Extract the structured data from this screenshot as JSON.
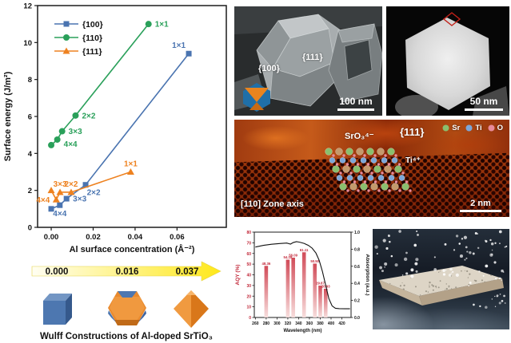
{
  "chart_data": [
    {
      "type": "scatter-line",
      "title": "",
      "xlabel": "Al surface concentration (Å⁻²)",
      "ylabel": "Surface energy (J/m²)",
      "xlim": [
        -0.0065,
        0.0835
      ],
      "ylim": [
        0,
        12
      ],
      "xticks": [
        {
          "v": 0.0,
          "label": "0.00"
        },
        {
          "v": 0.02,
          "label": "0.02"
        },
        {
          "v": 0.04,
          "label": "0.04"
        },
        {
          "v": 0.06,
          "label": "0.06"
        }
      ],
      "yticks": [
        {
          "v": 0,
          "label": "0"
        },
        {
          "v": 2,
          "label": "2"
        },
        {
          "v": 4,
          "label": "4"
        },
        {
          "v": 6,
          "label": "6"
        },
        {
          "v": 8,
          "label": "8"
        },
        {
          "v": 10,
          "label": "10"
        },
        {
          "v": 12,
          "label": "12"
        }
      ],
      "legend_position": "top-left",
      "series": [
        {
          "name": "{100}",
          "color": "#4a74b0",
          "marker": "square",
          "points": [
            {
              "x": 0.0,
              "y": 1.0,
              "label": "",
              "lp": ""
            },
            {
              "x": 0.0041,
              "y": 1.2,
              "label": "4×4",
              "lp": "below"
            },
            {
              "x": 0.0073,
              "y": 1.55,
              "label": "3×3",
              "lp": "right"
            },
            {
              "x": 0.0164,
              "y": 2.3,
              "label": "2×2",
              "lp": "below-right"
            },
            {
              "x": 0.0656,
              "y": 9.4,
              "label": "1×1",
              "lp": "above-left"
            }
          ]
        },
        {
          "name": "{110}",
          "color": "#2aa05a",
          "marker": "circle",
          "points": [
            {
              "x": 0.0,
              "y": 4.45,
              "label": "",
              "lp": ""
            },
            {
              "x": 0.0029,
              "y": 4.75,
              "label": "4×4",
              "lp": "right-below"
            },
            {
              "x": 0.0052,
              "y": 5.2,
              "label": "3×3",
              "lp": "right"
            },
            {
              "x": 0.0116,
              "y": 6.05,
              "label": "2×2",
              "lp": "right"
            },
            {
              "x": 0.0464,
              "y": 11.0,
              "label": "1×1",
              "lp": "right"
            }
          ]
        },
        {
          "name": "{111}",
          "color": "#ee8220",
          "marker": "triangle",
          "points": [
            {
              "x": 0.0,
              "y": 2.0,
              "label": "",
              "lp": ""
            },
            {
              "x": 0.0024,
              "y": 1.5,
              "label": "4×4",
              "lp": "left"
            },
            {
              "x": 0.0042,
              "y": 1.9,
              "label": "3×3",
              "lp": "above"
            },
            {
              "x": 0.0095,
              "y": 1.9,
              "label": "2×2",
              "lp": "above"
            },
            {
              "x": 0.0379,
              "y": 3.0,
              "label": "1×1",
              "lp": "above"
            }
          ]
        }
      ]
    },
    {
      "type": "bar+line",
      "title": "",
      "xlabel": "Wavelength (nm)",
      "ylabel_left": "AQY (%)",
      "ylabel_right": "Absorption (a.u.)",
      "xlim": [
        258,
        437
      ],
      "ylim_left": [
        0,
        80
      ],
      "ylim_right": [
        0,
        1.0
      ],
      "xticks": [
        {
          "v": 260,
          "label": "260"
        },
        {
          "v": 280,
          "label": "280"
        },
        {
          "v": 300,
          "label": "300"
        },
        {
          "v": 320,
          "label": "320"
        },
        {
          "v": 340,
          "label": "340"
        },
        {
          "v": 360,
          "label": "360"
        },
        {
          "v": 380,
          "label": "380"
        },
        {
          "v": 400,
          "label": "400"
        },
        {
          "v": 420,
          "label": "420"
        }
      ],
      "yticks_left": [
        {
          "v": 0,
          "label": "0"
        },
        {
          "v": 10,
          "label": "10"
        },
        {
          "v": 20,
          "label": "20"
        },
        {
          "v": 30,
          "label": "30"
        },
        {
          "v": 40,
          "label": "40"
        },
        {
          "v": 50,
          "label": "50"
        },
        {
          "v": 60,
          "label": "60"
        },
        {
          "v": 70,
          "label": "70"
        },
        {
          "v": 80,
          "label": "80"
        }
      ],
      "yticks_right": [
        {
          "v": 0.0,
          "label": "0.0"
        },
        {
          "v": 0.2,
          "label": "0.2"
        },
        {
          "v": 0.4,
          "label": "0.4"
        },
        {
          "v": 0.6,
          "label": "0.6"
        },
        {
          "v": 0.8,
          "label": "0.8"
        },
        {
          "v": 1.0,
          "label": "1.0"
        }
      ],
      "bar_color_top": "#d14b58",
      "bar_color_bottom": "#f7dedd",
      "label_color": "#c2293a",
      "bars": [
        {
          "wavelength": 280,
          "aqy": 48.36
        },
        {
          "wavelength": 320,
          "aqy": 54.18
        },
        {
          "wavelength": 330,
          "aqy": 56.09
        },
        {
          "wavelength": 350,
          "aqy": 61.11
        },
        {
          "wavelength": 370,
          "aqy": 50.5
        },
        {
          "wavelength": 380,
          "aqy": 29.87
        },
        {
          "wavelength": 390,
          "aqy": 26.93
        }
      ],
      "absorption_curve": [
        [
          260,
          0.825
        ],
        [
          275,
          0.845
        ],
        [
          290,
          0.858
        ],
        [
          305,
          0.866
        ],
        [
          318,
          0.872
        ],
        [
          325,
          0.86
        ],
        [
          330,
          0.878
        ],
        [
          336,
          0.888
        ],
        [
          342,
          0.882
        ],
        [
          350,
          0.868
        ],
        [
          358,
          0.845
        ],
        [
          365,
          0.812
        ],
        [
          372,
          0.755
        ],
        [
          378,
          0.67
        ],
        [
          384,
          0.54
        ],
        [
          390,
          0.38
        ],
        [
          396,
          0.22
        ],
        [
          402,
          0.135
        ],
        [
          408,
          0.108
        ],
        [
          415,
          0.103
        ],
        [
          425,
          0.102
        ],
        [
          435,
          0.102
        ]
      ]
    }
  ],
  "wulff_panel": {
    "axis_arrow_values": [
      "0.000",
      "0.016",
      "0.037"
    ],
    "caption": "Wulff Constructions of Al-doped SrTiO₃",
    "arrow_color_start": "#fffef2",
    "arrow_color_end": "#ffe81a",
    "cube_color": "#4d77b0",
    "octahedron_color": "#ef8a2a"
  },
  "sem_image_1": {
    "facet_label_100": "{100}",
    "facet_label_111": "{111}",
    "scale_bar": "100 nm"
  },
  "sem_image_2": {
    "scale_bar": "50 nm"
  },
  "stem_image": {
    "surface_label": "SrO₃⁴⁻",
    "facet_label": "{111}",
    "ion_label": "Ti⁴⁺",
    "zone_axis_label": "[110] Zone axis",
    "scale_bar": "2 nm",
    "legend": [
      {
        "name": "Sr",
        "color": "#8abf6e"
      },
      {
        "name": "Ti",
        "color": "#7da7d9"
      },
      {
        "name": "O",
        "color": "#e88a9a"
      }
    ]
  }
}
